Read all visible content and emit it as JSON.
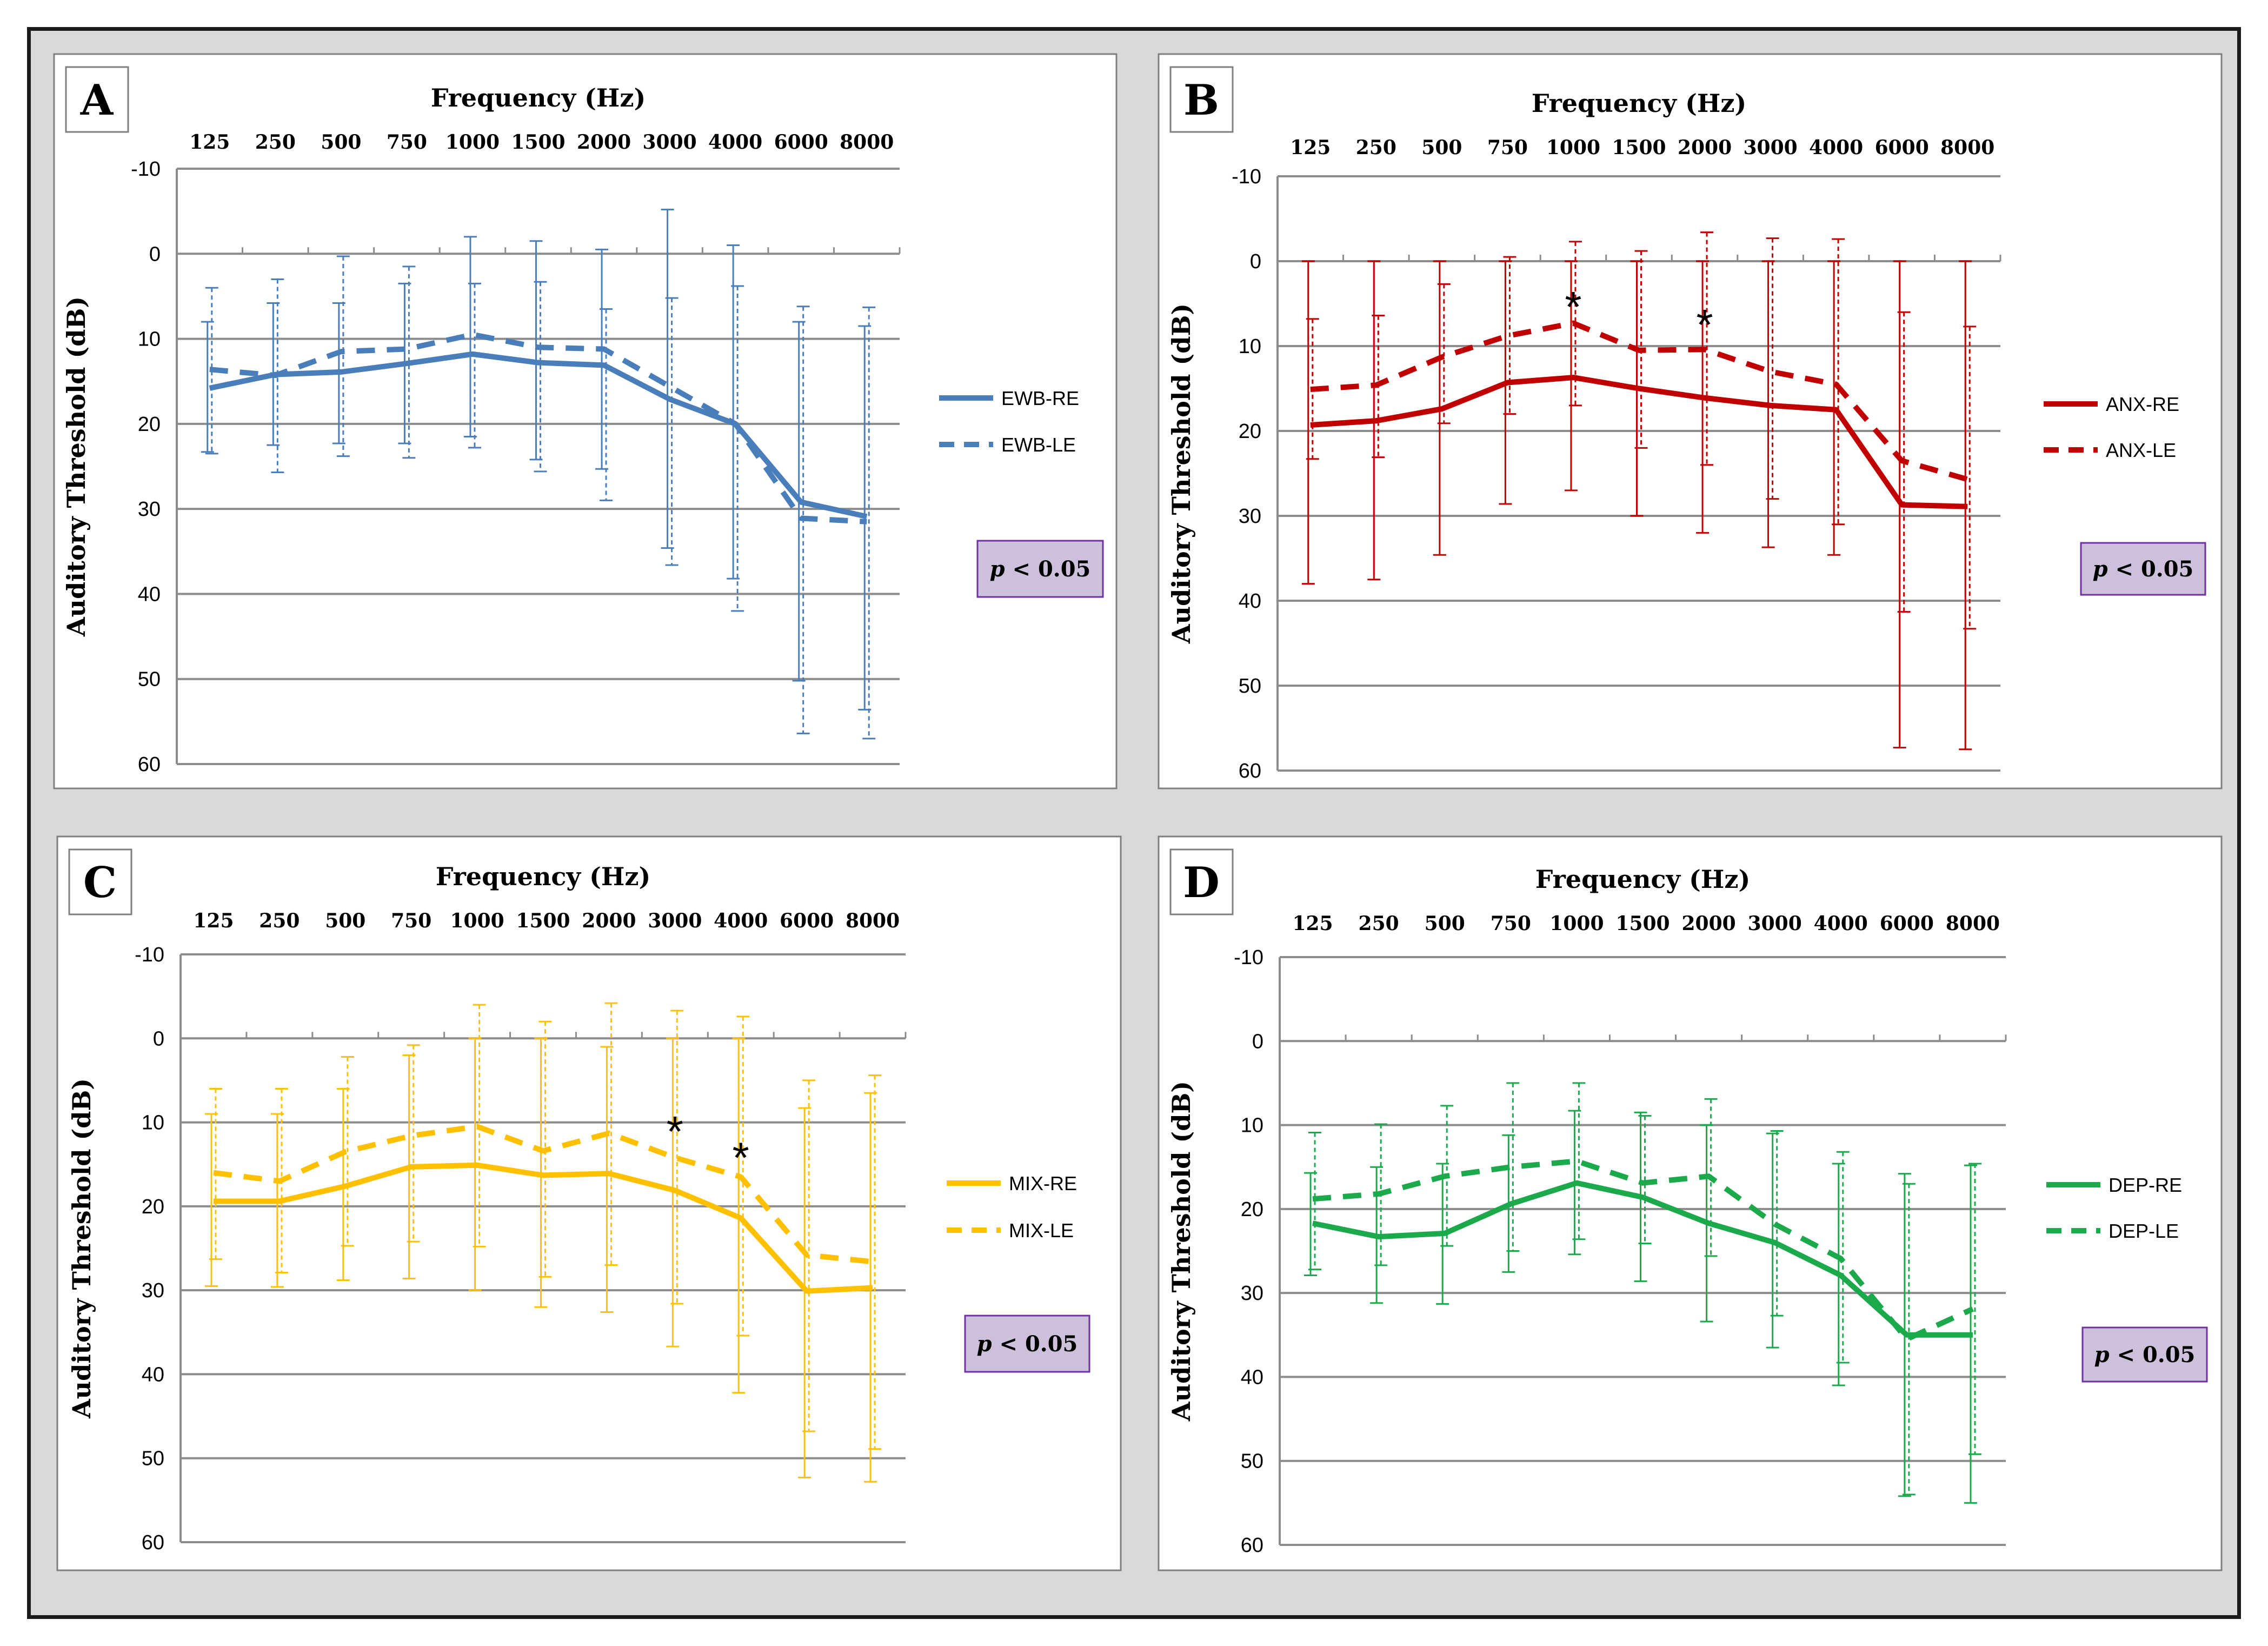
{
  "chart_data": [
    {
      "type": "line",
      "panel": "A",
      "xlabel": "Frequency  (Hz)",
      "ylabel": "Auditory  Threshold (dB)",
      "categories": [
        "125",
        "250",
        "500",
        "750",
        "1000",
        "1500",
        "2000",
        "3000",
        "4000",
        "6000",
        "8000"
      ],
      "yticks": [
        "-10",
        "0",
        "10",
        "20",
        "30",
        "40",
        "50",
        "60"
      ],
      "ylim": [
        -10,
        60
      ],
      "y_inverted": true,
      "grid": true,
      "legend_position": "right",
      "p_note": {
        "italic": "p",
        "rest": " < 0.05"
      },
      "colors": {
        "line": "#4a7ebb",
        "pbox": "#ccc0da"
      },
      "significance_markers": [],
      "series": [
        {
          "name": "EWB-RE",
          "dash": "solid",
          "values": [
            15.8,
            14.2,
            13.9,
            12.9,
            11.8,
            12.8,
            13.1,
            17.1,
            20.0,
            29.2,
            30.9
          ],
          "err_low": [
            8.0,
            5.8,
            5.8,
            3.5,
            -2.0,
            -1.5,
            -0.5,
            -5.2,
            -1.0,
            8.0,
            8.5
          ],
          "err_high": [
            23.3,
            22.5,
            22.3,
            22.3,
            21.5,
            24.2,
            25.3,
            34.6,
            38.2,
            50.2,
            53.6
          ]
        },
        {
          "name": "EWB-LE",
          "dash": "dashed",
          "values": [
            13.6,
            14.3,
            11.5,
            11.2,
            9.5,
            11.0,
            11.2,
            15.6,
            20.0,
            31.1,
            31.5
          ],
          "err_low": [
            4.0,
            3.0,
            0.3,
            1.5,
            3.5,
            3.3,
            6.5,
            5.2,
            3.8,
            6.2,
            6.3
          ],
          "err_high": [
            23.5,
            25.7,
            23.8,
            24.0,
            22.8,
            25.6,
            29.0,
            36.6,
            42.0,
            56.4,
            57.0
          ]
        }
      ]
    },
    {
      "type": "line",
      "panel": "B",
      "xlabel": "Frequency  (Hz)",
      "ylabel": "Auditory  Threshold (dB)",
      "categories": [
        "125",
        "250",
        "500",
        "750",
        "1000",
        "1500",
        "2000",
        "3000",
        "4000",
        "6000",
        "8000"
      ],
      "yticks": [
        "-10",
        "0",
        "10",
        "20",
        "30",
        "40",
        "50",
        "60"
      ],
      "ylim": [
        -10,
        60
      ],
      "y_inverted": true,
      "grid": true,
      "legend_position": "right",
      "p_note": {
        "italic": "p",
        "rest": " < 0.05"
      },
      "colors": {
        "line": "#c00000",
        "pbox": "#ccc0da"
      },
      "significance_markers": [
        {
          "category": "1000",
          "label": "*",
          "y": 4.6
        },
        {
          "category": "2000",
          "label": "*",
          "y": 6.7
        }
      ],
      "series": [
        {
          "name": "ANX-RE",
          "dash": "solid",
          "values": [
            19.3,
            18.8,
            17.4,
            14.3,
            13.7,
            15.0,
            16.1,
            17.0,
            17.5,
            28.7,
            28.9
          ],
          "err_low": [
            0.0,
            0.0,
            0.0,
            0.0,
            0.0,
            0.0,
            0.0,
            0.0,
            0.0,
            0.0,
            0.0
          ],
          "err_high": [
            38.0,
            37.5,
            34.6,
            28.6,
            27.0,
            30.0,
            32.0,
            33.7,
            34.6,
            57.3,
            57.5
          ]
        },
        {
          "name": "ANX-LE",
          "dash": "dashed",
          "values": [
            15.1,
            14.6,
            11.3,
            8.8,
            7.3,
            10.5,
            10.4,
            13.0,
            14.5,
            23.5,
            25.7
          ],
          "err_low": [
            6.8,
            6.4,
            2.7,
            -0.5,
            -2.3,
            -1.2,
            -3.4,
            -2.7,
            -2.6,
            6.0,
            7.7
          ],
          "err_high": [
            23.3,
            23.1,
            19.1,
            18.0,
            17.0,
            22.0,
            24.0,
            28.0,
            31.0,
            41.3,
            43.3
          ]
        }
      ]
    },
    {
      "type": "line",
      "panel": "C",
      "xlabel": "Frequency  (Hz)",
      "ylabel": "Auditory  Threshold (dB)",
      "categories": [
        "125",
        "250",
        "500",
        "750",
        "1000",
        "1500",
        "2000",
        "3000",
        "4000",
        "6000",
        "8000"
      ],
      "yticks": [
        "-10",
        "0",
        "10",
        "20",
        "30",
        "40",
        "50",
        "60"
      ],
      "ylim": [
        -10,
        60
      ],
      "y_inverted": true,
      "grid": true,
      "legend_position": "right",
      "p_note": {
        "italic": "p",
        "rest": " < 0.05"
      },
      "colors": {
        "line": "#ffc000",
        "pbox": "#ccc0da"
      },
      "significance_markers": [
        {
          "category": "3000",
          "label": "*",
          "y": 10.3
        },
        {
          "category": "4000",
          "label": "*",
          "y": 13.4
        }
      ],
      "series": [
        {
          "name": "MIX-RE",
          "dash": "solid",
          "values": [
            19.4,
            19.4,
            17.6,
            15.3,
            15.1,
            16.3,
            16.1,
            18.1,
            21.4,
            30.1,
            29.7
          ],
          "err_low": [
            9.0,
            9.0,
            6.0,
            2.0,
            0.0,
            0.0,
            1.0,
            0.0,
            0.0,
            8.3,
            6.5
          ],
          "err_high": [
            29.5,
            29.6,
            28.8,
            28.6,
            30.0,
            32.0,
            32.6,
            36.7,
            42.2,
            52.3,
            52.8
          ]
        },
        {
          "name": "MIX-LE",
          "dash": "dashed",
          "values": [
            16.0,
            17.0,
            13.5,
            11.6,
            10.5,
            13.4,
            11.3,
            14.2,
            16.5,
            25.8,
            26.6
          ],
          "err_low": [
            6.0,
            6.0,
            2.2,
            0.8,
            -4.0,
            -2.0,
            -4.2,
            -3.3,
            -2.6,
            5.0,
            4.4
          ],
          "err_high": [
            26.3,
            27.9,
            24.7,
            24.2,
            24.8,
            28.4,
            27.0,
            31.6,
            35.4,
            46.8,
            48.9
          ]
        }
      ]
    },
    {
      "type": "line",
      "panel": "D",
      "xlabel": "Frequency  (Hz)",
      "ylabel": "Auditory  Threshold (dB)",
      "categories": [
        "125",
        "250",
        "500",
        "750",
        "1000",
        "1500",
        "2000",
        "3000",
        "4000",
        "6000",
        "8000"
      ],
      "yticks": [
        "-10",
        "0",
        "10",
        "20",
        "30",
        "40",
        "50",
        "60"
      ],
      "ylim": [
        -10,
        60
      ],
      "y_inverted": true,
      "grid": true,
      "legend_position": "right",
      "p_note": {
        "italic": "p",
        "rest": " < 0.05"
      },
      "colors": {
        "line": "#1ba94c",
        "pbox": "#ccc0da"
      },
      "significance_markers": [],
      "series": [
        {
          "name": "DEP-RE",
          "dash": "solid",
          "values": [
            21.7,
            23.3,
            22.9,
            19.4,
            16.9,
            18.6,
            21.7,
            24.0,
            27.9,
            35.0,
            35.0
          ],
          "err_low": [
            15.7,
            15.0,
            14.6,
            11.2,
            8.3,
            8.5,
            10.0,
            11.0,
            14.6,
            15.8,
            14.8
          ],
          "err_high": [
            27.9,
            31.2,
            31.3,
            27.5,
            25.4,
            28.6,
            33.4,
            36.5,
            41.0,
            54.2,
            55.0
          ]
        },
        {
          "name": "DEP-LE",
          "dash": "dashed",
          "values": [
            18.8,
            18.2,
            16.1,
            15.0,
            14.3,
            16.9,
            16.1,
            21.8,
            25.9,
            35.5,
            31.9
          ],
          "err_low": [
            10.9,
            9.9,
            7.7,
            5.0,
            5.0,
            8.9,
            6.9,
            10.7,
            13.2,
            17.0,
            14.6
          ],
          "err_high": [
            27.2,
            26.7,
            24.4,
            25.0,
            23.6,
            24.1,
            25.6,
            32.7,
            38.3,
            54.0,
            49.2
          ]
        }
      ]
    }
  ]
}
